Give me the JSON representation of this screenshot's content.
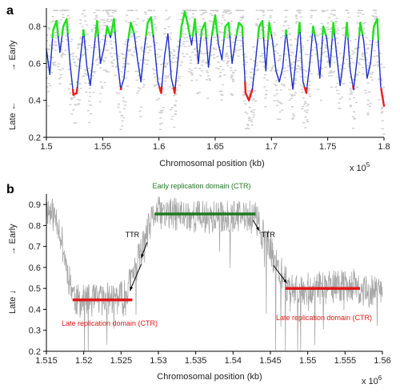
{
  "chart_data": [
    {
      "panel_label": "a",
      "type": "line",
      "xlabel": "Chromosomal position (kb)",
      "ylabel_low": "Late ←",
      "ylabel_high": "→ Early",
      "x_multiplier": "x 10",
      "x_multiplier_exp": "5",
      "xlim": [
        1.5,
        1.8
      ],
      "ylim": [
        0.2,
        0.9
      ],
      "x_ticks": [
        "1.5",
        "1.55",
        "1.6",
        "1.65",
        "1.7",
        "1.75",
        "1.8"
      ],
      "y_ticks": [
        "0.2",
        "0.4",
        "0.6",
        "0.8"
      ],
      "colors": {
        "background_points": "#cfcfcf",
        "mid": "#1f2fc8",
        "high": "#22e022",
        "low": "#e82020"
      },
      "color_thresholds": {
        "high": 0.75,
        "low": 0.47
      },
      "series": [
        {
          "x": [
            1.5,
            1.503,
            1.506,
            1.509,
            1.512,
            1.515,
            1.518,
            1.521,
            1.524,
            1.527,
            1.53,
            1.533,
            1.536,
            1.539,
            1.542,
            1.545,
            1.548,
            1.551,
            1.554,
            1.557,
            1.56,
            1.563,
            1.566,
            1.569,
            1.572,
            1.575,
            1.578,
            1.581,
            1.584,
            1.587,
            1.59,
            1.593,
            1.596,
            1.599,
            1.602,
            1.605,
            1.608,
            1.611,
            1.614,
            1.617,
            1.62,
            1.623,
            1.626,
            1.629,
            1.632,
            1.635,
            1.638,
            1.641,
            1.644,
            1.647,
            1.65,
            1.653,
            1.656,
            1.659,
            1.662,
            1.665,
            1.668,
            1.671,
            1.674,
            1.677,
            1.68,
            1.683,
            1.686,
            1.689,
            1.692,
            1.695,
            1.698,
            1.701,
            1.704,
            1.707,
            1.71,
            1.713,
            1.716,
            1.719,
            1.722,
            1.725,
            1.728,
            1.731,
            1.734,
            1.737,
            1.74,
            1.743,
            1.746,
            1.749,
            1.752,
            1.755,
            1.758,
            1.761,
            1.764,
            1.767,
            1.77,
            1.773,
            1.776,
            1.779,
            1.782,
            1.785,
            1.788,
            1.791,
            1.794,
            1.797,
            1.8
          ],
          "y": [
            0.68,
            0.54,
            0.78,
            0.83,
            0.66,
            0.8,
            0.84,
            0.6,
            0.43,
            0.44,
            0.62,
            0.78,
            0.58,
            0.48,
            0.66,
            0.83,
            0.6,
            0.68,
            0.8,
            0.74,
            0.84,
            0.62,
            0.46,
            0.52,
            0.7,
            0.82,
            0.76,
            0.62,
            0.5,
            0.68,
            0.82,
            0.85,
            0.7,
            0.5,
            0.44,
            0.64,
            0.76,
            0.52,
            0.44,
            0.62,
            0.8,
            0.88,
            0.8,
            0.7,
            0.84,
            0.6,
            0.78,
            0.82,
            0.58,
            0.75,
            0.86,
            0.7,
            0.62,
            0.8,
            0.82,
            0.6,
            0.72,
            0.82,
            0.8,
            0.44,
            0.4,
            0.46,
            0.62,
            0.8,
            0.83,
            0.56,
            0.82,
            0.72,
            0.56,
            0.5,
            0.58,
            0.78,
            0.62,
            0.46,
            0.64,
            0.82,
            0.5,
            0.44,
            0.6,
            0.8,
            0.7,
            0.52,
            0.8,
            0.74,
            0.58,
            0.82,
            0.64,
            0.48,
            0.62,
            0.82,
            0.56,
            0.46,
            0.62,
            0.82,
            0.72,
            0.52,
            0.6,
            0.8,
            0.84,
            0.48,
            0.37
          ]
        }
      ]
    },
    {
      "panel_label": "b",
      "type": "line",
      "xlabel": "Chromosomal position (kb)",
      "ylabel_low": "Late ↓",
      "ylabel_high": "→ Early",
      "x_multiplier": "x 10",
      "x_multiplier_exp": "6",
      "xlim": [
        1.515,
        1.56
      ],
      "ylim": [
        0.2,
        0.95
      ],
      "x_ticks": [
        "1.515",
        "1.52",
        "1.525",
        "1.53",
        "1.535",
        "1.54",
        "1.545",
        "1.55",
        "1.555",
        "1.56"
      ],
      "y_ticks": [
        "0.2",
        "0.3",
        "0.4",
        "0.5",
        "0.6",
        "0.7",
        "0.8",
        "0.9"
      ],
      "colors": {
        "trace": "#a8a8a8",
        "early_domain": "#1f7a1f",
        "late_domain": "#e01818",
        "arrow": "#000000"
      },
      "trace_profile": {
        "x": [
          1.515,
          1.5165,
          1.518,
          1.519,
          1.521,
          1.5255,
          1.527,
          1.5285,
          1.5295,
          1.537,
          1.543,
          1.5445,
          1.546,
          1.5475,
          1.552,
          1.556,
          1.557,
          1.56
        ],
        "y": [
          0.88,
          0.83,
          0.55,
          0.44,
          0.44,
          0.46,
          0.6,
          0.76,
          0.86,
          0.84,
          0.84,
          0.72,
          0.6,
          0.5,
          0.5,
          0.52,
          0.48,
          0.5
        ]
      },
      "domains": [
        {
          "label": "Early replication domain (CTR)",
          "x0": 1.5295,
          "x1": 1.543,
          "y": 0.855
        },
        {
          "label": "Late replication domain (CTR)",
          "x0": 1.5185,
          "x1": 1.5265,
          "y": 0.445
        },
        {
          "label": "Late replication domain (CTR)",
          "x0": 1.547,
          "x1": 1.557,
          "y": 0.5
        }
      ],
      "annotations": [
        {
          "label": "TTR",
          "x": 1.5265,
          "y": 0.745
        },
        {
          "label": "TTR",
          "x": 1.5447,
          "y": 0.745
        }
      ],
      "arrows": [
        {
          "x0": 1.5285,
          "y0": 0.72,
          "x1": 1.5277,
          "y1": 0.645
        },
        {
          "x0": 1.5277,
          "y0": 0.615,
          "x1": 1.5262,
          "y1": 0.49
        },
        {
          "x0": 1.5427,
          "y0": 0.825,
          "x1": 1.5435,
          "y1": 0.775
        },
        {
          "x0": 1.5454,
          "y0": 0.61,
          "x1": 1.5472,
          "y1": 0.525
        }
      ]
    }
  ]
}
